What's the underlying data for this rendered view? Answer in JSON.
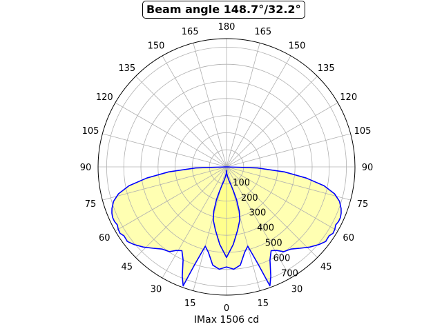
{
  "chart_data": {
    "type": "polar-line",
    "title": "Beam angle 148.7°/32.2°",
    "xlabel": "IMax 1506 cd",
    "angle_ticks_left": [
      "180",
      "165",
      "150",
      "135",
      "120",
      "105",
      "90",
      "75",
      "60",
      "45",
      "30",
      "15",
      "0"
    ],
    "angle_ticks_right": [
      "165",
      "150",
      "135",
      "120",
      "105",
      "90",
      "75",
      "60",
      "45",
      "30",
      "15"
    ],
    "radial_ticks": [
      "100",
      "200",
      "300",
      "400",
      "500",
      "600",
      "700"
    ],
    "rlim": [
      0,
      750
    ],
    "grid": true,
    "series": [
      {
        "color": "#0000ff",
        "fill": "#ffffaa",
        "angles_deg": [
          0,
          4,
          8,
          12,
          15,
          18,
          20,
          22,
          25,
          28,
          31,
          34,
          38,
          42,
          46,
          50,
          53,
          56,
          58,
          60,
          62,
          64,
          66,
          68,
          70,
          73,
          76,
          79,
          82,
          85,
          88,
          90
        ],
        "intensities_cd": [
          585,
          600,
          580,
          510,
          480,
          600,
          740,
          690,
          600,
          555,
          570,
          598,
          610,
          640,
          675,
          706,
          725,
          722,
          733,
          730,
          722,
          728,
          728,
          722,
          712,
          690,
          650,
          580,
          470,
          340,
          180,
          0
        ]
      },
      {
        "color": "#0000ff",
        "fill": "#ffff88",
        "angles_deg": [
          0,
          5,
          10,
          14,
          16,
          17,
          16,
          14,
          10,
          6,
          3,
          1,
          0
        ],
        "intensities_cd": [
          530,
          455,
          375,
          320,
          270,
          200,
          150,
          110,
          80,
          55,
          40,
          28,
          20
        ]
      }
    ]
  }
}
